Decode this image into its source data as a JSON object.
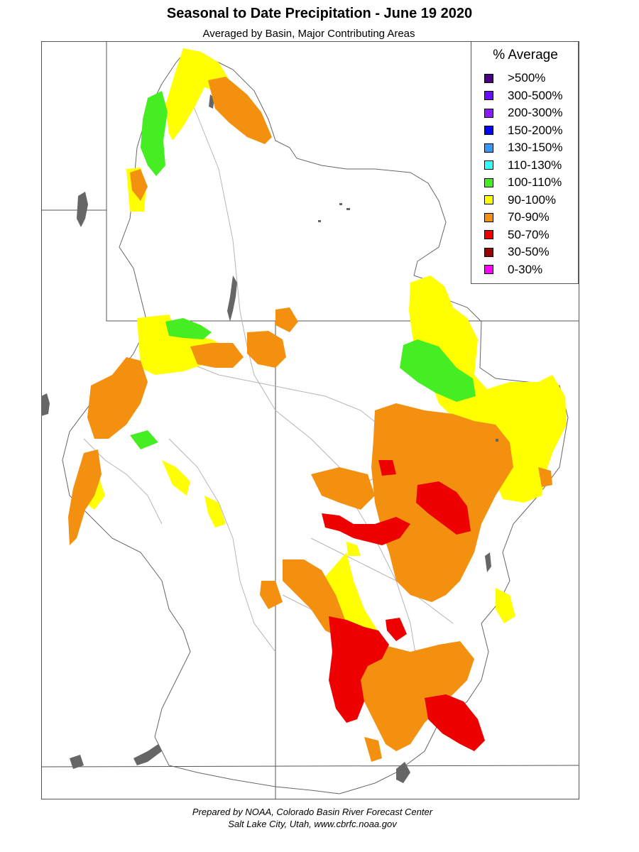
{
  "header": {
    "title": "Seasonal to Date Precipitation - June 19 2020",
    "subtitle": "Averaged by Basin, Major Contributing Areas"
  },
  "legend": {
    "title": "% Average",
    "items": [
      {
        "label": ">500%",
        "color": "#4b0082"
      },
      {
        "label": "300-500%",
        "color": "#6a0dff"
      },
      {
        "label": "200-300%",
        "color": "#8b1aff"
      },
      {
        "label": "150-200%",
        "color": "#0000ff"
      },
      {
        "label": "130-150%",
        "color": "#3399ff"
      },
      {
        "label": "110-130%",
        "color": "#33ffff"
      },
      {
        "label": "100-110%",
        "color": "#44ee22"
      },
      {
        "label": "90-100%",
        "color": "#ffff00"
      },
      {
        "label": "70-90%",
        "color": "#f39010"
      },
      {
        "label": "50-70%",
        "color": "#ee0000"
      },
      {
        "label": "30-50%",
        "color": "#990000"
      },
      {
        "label": "0-30%",
        "color": "#ff00ff"
      }
    ]
  },
  "footer": {
    "line1": "Prepared by NOAA, Colorado Basin River Forecast Center",
    "line2": "Salt Lake City, Utah, www.cbrfc.noaa.gov"
  },
  "colors": {
    "lake": "#666666",
    "border": "#555555",
    "rivers": "#b5b5b5"
  }
}
